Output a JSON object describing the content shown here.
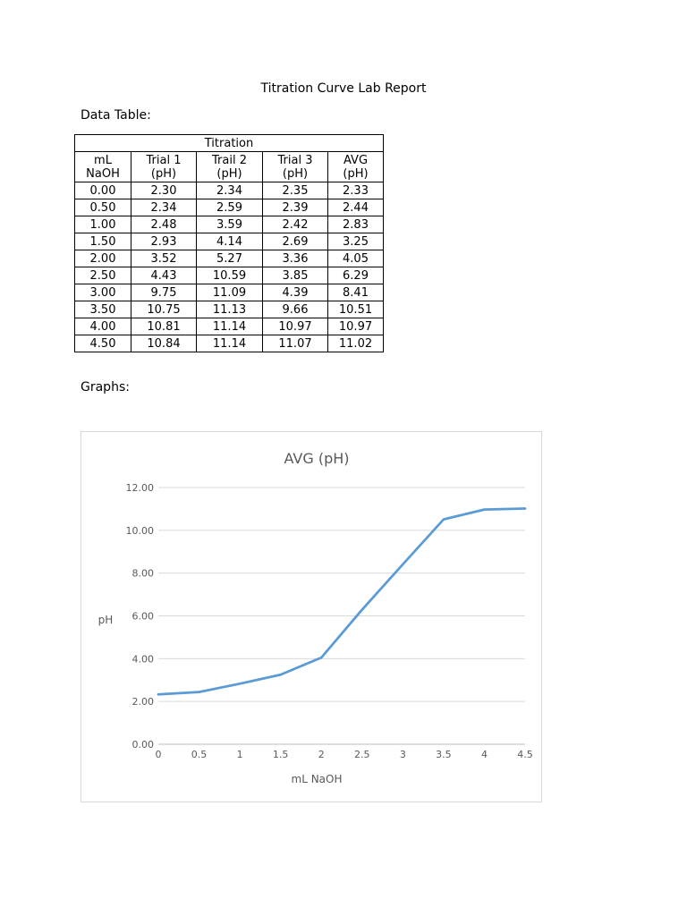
{
  "document": {
    "title": "Titration Curve Lab Report",
    "data_table_label": "Data Table:",
    "graphs_label": "Graphs:"
  },
  "table": {
    "caption": "Titration",
    "headers": [
      [
        "mL",
        "NaOH"
      ],
      [
        "Trial 1",
        "(pH)"
      ],
      [
        "Trail 2",
        "(pH)"
      ],
      [
        "Trial 3",
        "(pH)"
      ],
      [
        "AVG",
        "(pH)"
      ]
    ],
    "rows": [
      [
        "0.00",
        "2.30",
        "2.34",
        "2.35",
        "2.33"
      ],
      [
        "0.50",
        "2.34",
        "2.59",
        "2.39",
        "2.44"
      ],
      [
        "1.00",
        "2.48",
        "3.59",
        "2.42",
        "2.83"
      ],
      [
        "1.50",
        "2.93",
        "4.14",
        "2.69",
        "3.25"
      ],
      [
        "2.00",
        "3.52",
        "5.27",
        "3.36",
        "4.05"
      ],
      [
        "2.50",
        "4.43",
        "10.59",
        "3.85",
        "6.29"
      ],
      [
        "3.00",
        "9.75",
        "11.09",
        "4.39",
        "8.41"
      ],
      [
        "3.50",
        "10.75",
        "11.13",
        "9.66",
        "10.51"
      ],
      [
        "4.00",
        "10.81",
        "11.14",
        "10.97",
        "10.97"
      ],
      [
        "4.50",
        "10.84",
        "11.14",
        "11.07",
        "11.02"
      ]
    ]
  },
  "chart_data": {
    "type": "line",
    "title": "AVG (pH)",
    "xlabel": "mL NaOH",
    "ylabel": "pH",
    "x": [
      0,
      0.5,
      1,
      1.5,
      2,
      2.5,
      3,
      3.5,
      4,
      4.5
    ],
    "x_tick_labels": [
      "0",
      "0.5",
      "1",
      "1.5",
      "2",
      "2.5",
      "3",
      "3.5",
      "4",
      "4.5"
    ],
    "y_tick_labels": [
      "0.00",
      "2.00",
      "4.00",
      "6.00",
      "8.00",
      "10.00",
      "12.00"
    ],
    "ylim": [
      0,
      12
    ],
    "series": [
      {
        "values": [
          2.33,
          2.44,
          2.83,
          3.25,
          4.05,
          6.29,
          8.41,
          10.51,
          10.97,
          11.02
        ]
      }
    ],
    "grid": "horizontal",
    "legend": "none",
    "colors": {
      "line": "#5b9bd5",
      "grid": "#d9d9d9",
      "axis": "#bfbfbf"
    }
  }
}
